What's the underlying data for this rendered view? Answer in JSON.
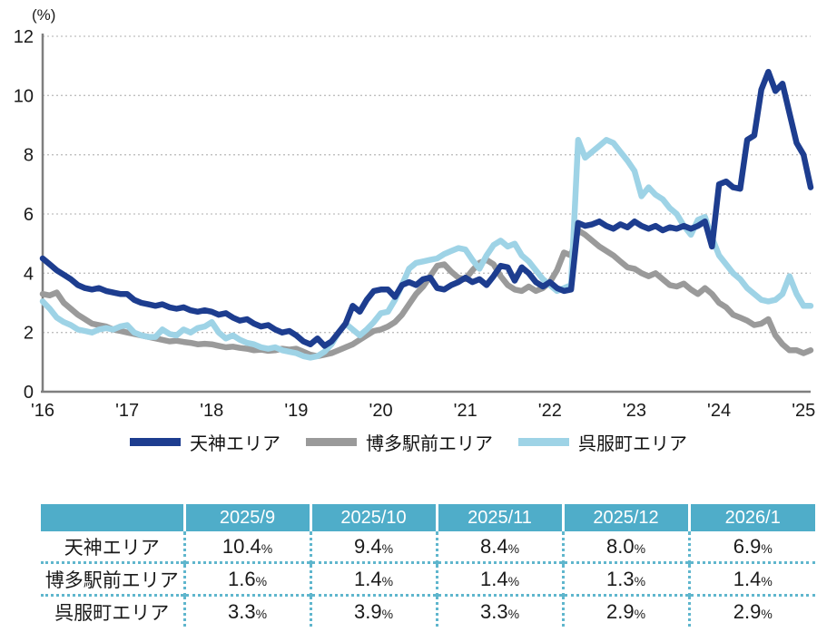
{
  "chart": {
    "unit_label": "(%)",
    "y_ticks": [
      0,
      2,
      4,
      6,
      8,
      10,
      12
    ],
    "x_ticks": [
      "'16",
      "'17",
      "'18",
      "'19",
      "'20",
      "'21",
      "'22",
      "'23",
      "'24",
      "'25"
    ],
    "axis_color": "#7f7f7f",
    "grid_color": "#bfbfbf",
    "label_color": "#1a1a1a"
  },
  "chart_data": {
    "type": "line",
    "title": "",
    "ylabel": "(%)",
    "ylim": [
      0,
      12
    ],
    "grid": "horizontal-dotted",
    "legend_position": "bottom",
    "x_tick_labels": [
      "'16",
      "'17",
      "'18",
      "'19",
      "'20",
      "'21",
      "'22",
      "'23",
      "'24",
      "'25"
    ],
    "x_unit": "monthly, 2016 through 2026/1",
    "series": [
      {
        "name": "天神エリア",
        "color": "#1d3d8f",
        "values": [
          4.5,
          4.3,
          4.1,
          3.95,
          3.8,
          3.6,
          3.5,
          3.45,
          3.5,
          3.4,
          3.35,
          3.3,
          3.3,
          3.1,
          3.0,
          2.95,
          2.9,
          2.95,
          2.85,
          2.8,
          2.85,
          2.75,
          2.7,
          2.75,
          2.7,
          2.6,
          2.65,
          2.5,
          2.4,
          2.45,
          2.3,
          2.2,
          2.25,
          2.1,
          2.0,
          2.05,
          1.9,
          1.7,
          1.6,
          1.8,
          1.55,
          1.7,
          2.0,
          2.3,
          2.9,
          2.7,
          3.1,
          3.4,
          3.45,
          3.45,
          3.2,
          3.6,
          3.7,
          3.6,
          3.8,
          3.85,
          3.5,
          3.45,
          3.6,
          3.7,
          3.85,
          3.7,
          3.8,
          3.6,
          3.9,
          4.25,
          4.2,
          3.75,
          4.2,
          4.0,
          3.7,
          3.55,
          3.7,
          3.5,
          3.4,
          3.45,
          5.7,
          5.6,
          5.65,
          5.75,
          5.6,
          5.5,
          5.65,
          5.55,
          5.75,
          5.6,
          5.5,
          5.6,
          5.45,
          5.55,
          5.5,
          5.6,
          5.5,
          5.6,
          5.75,
          4.9,
          7.0,
          7.1,
          6.9,
          6.85,
          8.5,
          8.65,
          10.2,
          10.8,
          10.15,
          10.4,
          9.4,
          8.4,
          8.0,
          6.9
        ]
      },
      {
        "name": "博多駅前エリア",
        "color": "#9a9a9a",
        "values": [
          3.3,
          3.25,
          3.35,
          3.0,
          2.8,
          2.6,
          2.45,
          2.3,
          2.25,
          2.2,
          2.1,
          2.05,
          2.0,
          1.95,
          1.9,
          1.85,
          1.8,
          1.75,
          1.7,
          1.72,
          1.68,
          1.65,
          1.6,
          1.62,
          1.6,
          1.55,
          1.5,
          1.52,
          1.48,
          1.45,
          1.4,
          1.42,
          1.38,
          1.4,
          1.45,
          1.42,
          1.45,
          1.35,
          1.25,
          1.2,
          1.25,
          1.3,
          1.4,
          1.5,
          1.6,
          1.75,
          1.9,
          2.05,
          2.1,
          2.2,
          2.35,
          2.6,
          2.95,
          3.3,
          3.55,
          3.9,
          4.25,
          4.3,
          4.05,
          3.85,
          3.8,
          4.1,
          4.35,
          4.45,
          4.3,
          3.9,
          3.6,
          3.45,
          3.4,
          3.55,
          3.4,
          3.5,
          3.7,
          4.1,
          4.7,
          4.6,
          5.45,
          5.3,
          5.1,
          4.9,
          4.75,
          4.6,
          4.4,
          4.2,
          4.15,
          4.0,
          3.9,
          4.0,
          3.8,
          3.6,
          3.55,
          3.65,
          3.45,
          3.3,
          3.5,
          3.3,
          3.0,
          2.85,
          2.6,
          2.5,
          2.4,
          2.25,
          2.3,
          2.45,
          1.9,
          1.6,
          1.4,
          1.4,
          1.3,
          1.4
        ]
      },
      {
        "name": "呉服町エリア",
        "color": "#9ed3e6",
        "values": [
          3.05,
          2.8,
          2.5,
          2.35,
          2.25,
          2.1,
          2.05,
          2.0,
          2.1,
          2.15,
          2.1,
          2.2,
          2.25,
          2.0,
          1.9,
          1.85,
          1.85,
          2.1,
          1.95,
          1.9,
          2.1,
          2.0,
          2.15,
          2.2,
          2.35,
          2.0,
          1.8,
          1.9,
          1.75,
          1.65,
          1.6,
          1.5,
          1.45,
          1.5,
          1.4,
          1.35,
          1.3,
          1.2,
          1.15,
          1.2,
          1.35,
          1.6,
          2.0,
          2.3,
          2.1,
          1.9,
          2.1,
          2.35,
          2.65,
          2.7,
          3.1,
          3.6,
          4.15,
          4.35,
          4.4,
          4.45,
          4.5,
          4.65,
          4.75,
          4.85,
          4.8,
          4.45,
          4.15,
          4.6,
          4.95,
          5.1,
          4.9,
          5.0,
          4.6,
          4.4,
          4.1,
          3.8,
          3.6,
          3.4,
          3.5,
          3.6,
          8.5,
          7.9,
          8.1,
          8.3,
          8.5,
          8.4,
          8.1,
          7.8,
          7.45,
          6.6,
          6.9,
          6.65,
          6.5,
          6.2,
          6.0,
          5.6,
          5.3,
          5.8,
          5.9,
          5.2,
          4.6,
          4.3,
          4.0,
          3.8,
          3.5,
          3.3,
          3.1,
          3.05,
          3.1,
          3.3,
          3.9,
          3.3,
          2.9,
          2.9
        ]
      }
    ]
  },
  "table": {
    "columns": [
      "2025/9",
      "2025/10",
      "2025/11",
      "2025/12",
      "2026/1"
    ],
    "percent_suffix": "%",
    "header_bg": "#4fadc9",
    "border_color": "#5fb6cd",
    "rows": [
      {
        "label": "天神エリア",
        "values": [
          "10.4",
          "9.4",
          "8.4",
          "8.0",
          "6.9"
        ]
      },
      {
        "label": "博多駅前エリア",
        "values": [
          "1.6",
          "1.4",
          "1.4",
          "1.3",
          "1.4"
        ]
      },
      {
        "label": "呉服町エリア",
        "values": [
          "3.3",
          "3.9",
          "3.3",
          "2.9",
          "2.9"
        ]
      }
    ]
  }
}
